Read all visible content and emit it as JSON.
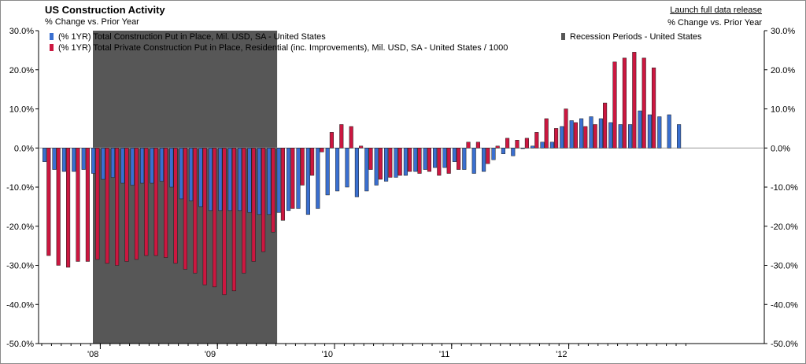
{
  "title": "US Construction Activity",
  "subtitle_left": "% Change vs. Prior Year",
  "subtitle_right": "% Change vs. Prior Year",
  "link_label": "Launch full data release",
  "colors": {
    "total": "#3a6fd0",
    "residential": "#cc1740",
    "recession": "#575757",
    "axis": "#000000",
    "grid": "#c8c8c8"
  },
  "chart_data": {
    "type": "bar",
    "ylim": [
      -50,
      30
    ],
    "yticks": [
      "30.0%",
      "20.0%",
      "10.0%",
      "0.0%",
      "-10.0%",
      "-20.0%",
      "-30.0%",
      "-40.0%",
      "-50.0%"
    ],
    "ytick_values": [
      30,
      20,
      10,
      0,
      -10,
      -20,
      -30,
      -40,
      -50
    ],
    "x_start": "2007-07",
    "x_labels": [
      {
        "label": "'08",
        "month": "2008-01"
      },
      {
        "label": "'09",
        "month": "2009-01"
      },
      {
        "label": "'10",
        "month": "2010-01"
      },
      {
        "label": "'11",
        "month": "2011-01"
      },
      {
        "label": "'12",
        "month": "2012-01"
      }
    ],
    "recession": {
      "name": "Recession Periods - United States",
      "start": "2007-12",
      "end": "2009-06"
    },
    "series": [
      {
        "name": "(% 1YR) Total Construction Put in Place, Mil. USD, SA - United States",
        "values": [
          -3.5,
          -5.5,
          -6,
          -6,
          -5.5,
          -6.5,
          -8,
          -7.5,
          -9,
          -9.5,
          -9,
          -9,
          -8.5,
          -10,
          -13,
          -13.5,
          -15,
          -16,
          -16,
          -16,
          -16,
          -16.5,
          -17,
          -17,
          -16.5,
          -16,
          -15.5,
          -17,
          -15.5,
          -12,
          -11,
          -10,
          -12.5,
          -11,
          -9.5,
          -8.5,
          -7.5,
          -7,
          -6,
          -5.5,
          -5,
          -5,
          -3.5,
          -5.5,
          -6.5,
          -6,
          -3,
          -1.5,
          -2,
          0,
          0.5,
          1.5,
          1.5,
          5.5,
          7,
          7.5,
          8,
          7.5,
          6.5,
          6,
          6,
          9.5,
          8.5,
          8,
          8.5,
          6
        ]
      },
      {
        "name": "(% 1YR) Total Private Construction Put in Place, Residential (inc. Improvements), Mil. USD, SA - United States / 1000",
        "values": [
          -27.5,
          -30,
          -30.5,
          -29,
          -29,
          -28.5,
          -29.5,
          -30,
          -29,
          -28.5,
          -27.5,
          -27.5,
          -28,
          -29.5,
          -31,
          -32,
          -35,
          -35.5,
          -37.5,
          -36.5,
          -32,
          -29,
          -26.5,
          -21.5,
          -18.5,
          -15.5,
          -9.5,
          -7,
          -1,
          4,
          6,
          5.5,
          0.5,
          -5.5,
          -8,
          -7.5,
          -7,
          -6,
          -6.5,
          -6,
          -7,
          -6.5,
          -5.5,
          1.5,
          1.5,
          -4,
          0.5,
          2.5,
          2,
          2.5,
          4,
          7.5,
          5,
          10,
          6.5,
          5.5,
          6,
          11.5,
          22,
          23,
          24.5,
          23,
          20.5
        ]
      }
    ]
  }
}
